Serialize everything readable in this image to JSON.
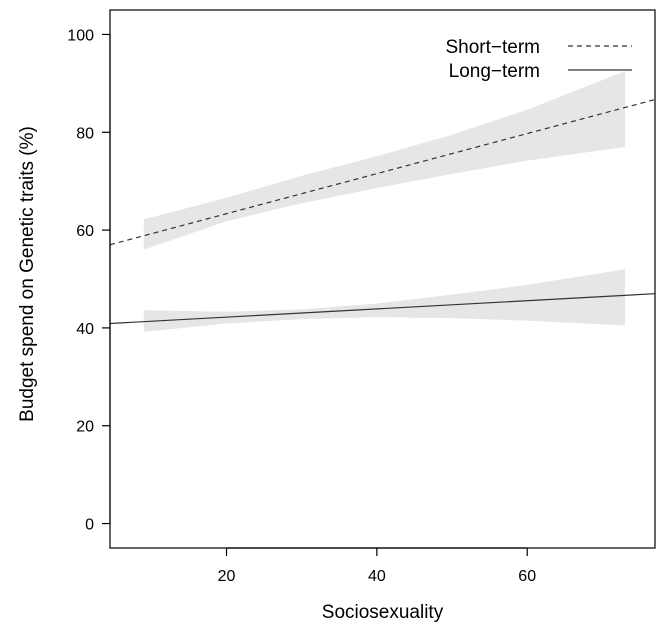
{
  "chart_data": {
    "type": "line",
    "title": "",
    "xlabel": "Sociosexuality",
    "ylabel": "Budget spend on Genetic traits (%)",
    "xlim": [
      4.5,
      77
    ],
    "ylim": [
      -5,
      105
    ],
    "xticks": [
      20,
      40,
      60
    ],
    "yticks": [
      0,
      20,
      40,
      60,
      80,
      100
    ],
    "grid": false,
    "legend_position": "top-right",
    "band_x_range": [
      9,
      73
    ],
    "series": [
      {
        "name": "Short−term",
        "style": "dashed",
        "color": "#333333",
        "x": [
          4.5,
          77
        ],
        "y": [
          57.0,
          86.7
        ],
        "band_x": [
          9,
          20,
          30,
          40,
          50,
          60,
          73
        ],
        "band_lower": [
          56.0,
          61.8,
          65.5,
          68.6,
          71.5,
          74.2,
          77.0
        ],
        "band_upper": [
          62.2,
          66.6,
          71.1,
          75.1,
          79.5,
          84.6,
          92.5
        ],
        "band_color": "#e5e6e8"
      },
      {
        "name": "Long−term",
        "style": "solid",
        "color": "#333333",
        "x": [
          4.5,
          77
        ],
        "y": [
          40.9,
          47.0
        ],
        "band_x": [
          9,
          20,
          30,
          40,
          50,
          60,
          73
        ],
        "band_lower": [
          39.2,
          40.9,
          41.8,
          42.2,
          42.0,
          41.5,
          40.5
        ],
        "band_upper": [
          43.6,
          43.3,
          43.8,
          45.0,
          46.8,
          48.8,
          52.0
        ],
        "band_color": "#e5e6e8"
      }
    ]
  }
}
